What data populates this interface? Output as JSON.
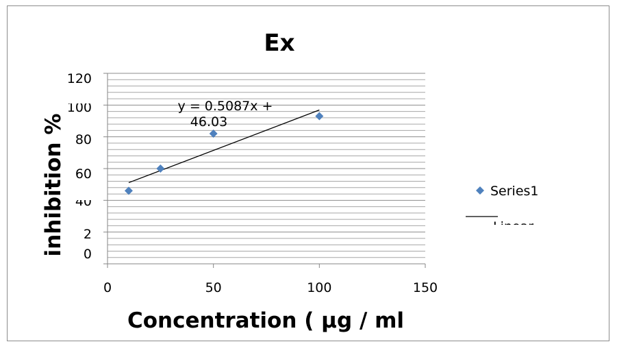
{
  "chart_data": {
    "type": "scatter",
    "title": "Ex",
    "xlabel": "Concentration ( µg / ml",
    "ylabel": "inhibition %",
    "xlim": [
      0,
      150
    ],
    "ylim": [
      0,
      120
    ],
    "x_ticks": [
      "0",
      "50",
      "100",
      "150"
    ],
    "y_ticks": [
      "0",
      "2",
      "40",
      "60",
      "80",
      "100",
      "120"
    ],
    "grid": true,
    "series": [
      {
        "name": "Series1",
        "x": [
          10,
          25,
          50,
          100
        ],
        "y": [
          46,
          60,
          82,
          93
        ],
        "color": "#4f81bd",
        "marker": "diamond"
      }
    ],
    "trendline": {
      "name": "Linear",
      "slope": 0.5087,
      "intercept": 46.03,
      "x_range": [
        10,
        100
      ],
      "equation_line1": "y = 0.5087x +",
      "equation_line2": "46.03",
      "color": "#000000"
    },
    "legend_position": "right"
  }
}
